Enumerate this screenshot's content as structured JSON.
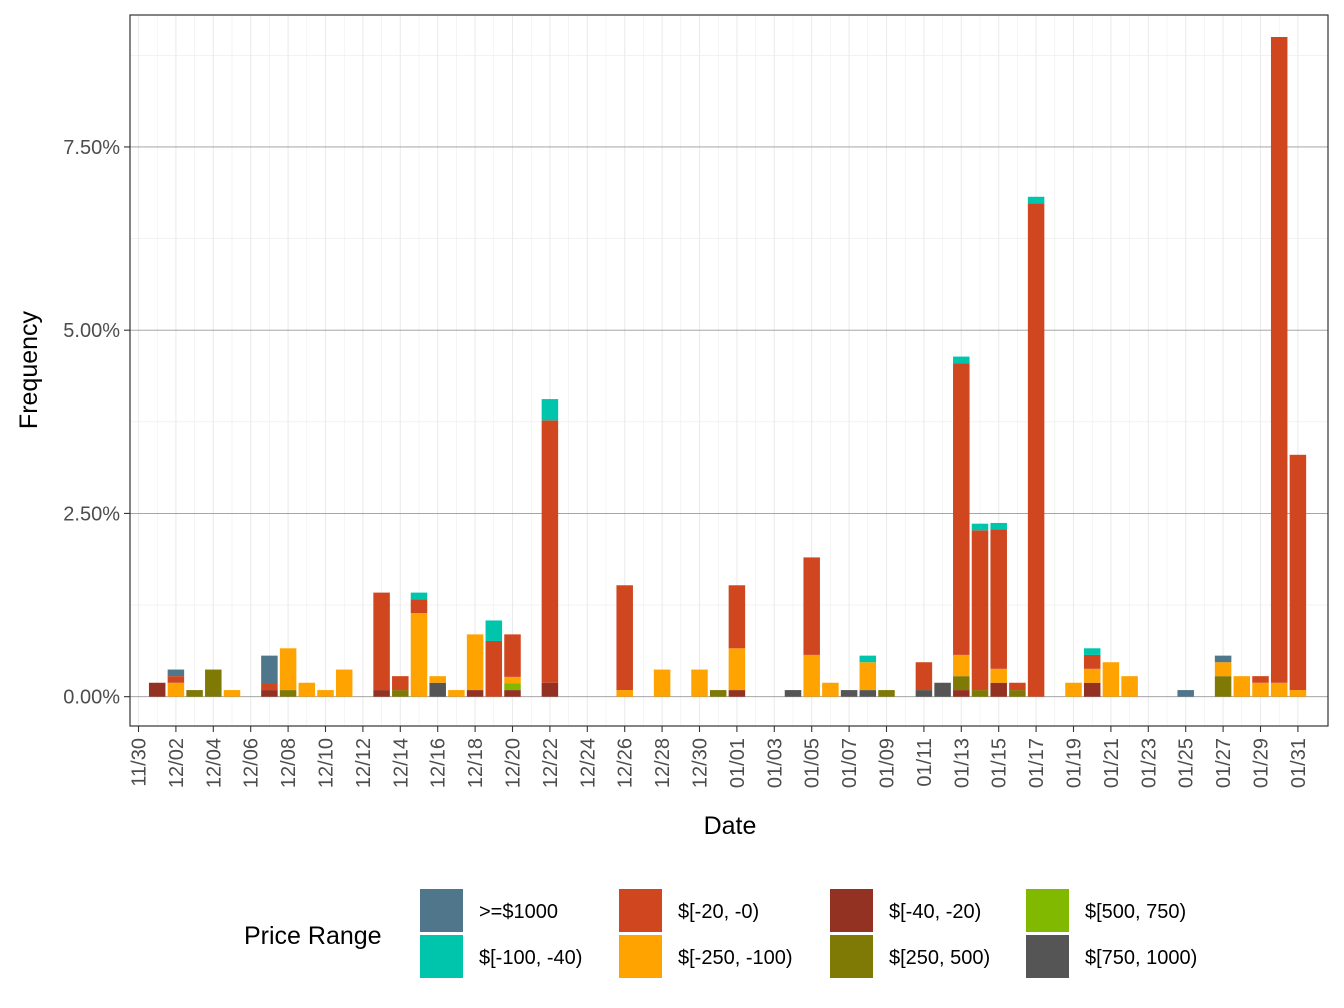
{
  "chart_data": {
    "type": "bar",
    "stacked": true,
    "xlabel": "Date",
    "ylabel": "Frequency",
    "ylim": [
      -0.4,
      9.3
    ],
    "y_ticks": [
      {
        "value": 0,
        "label": "0.00%"
      },
      {
        "value": 2.5,
        "label": "2.50%"
      },
      {
        "value": 5,
        "label": "5.00%"
      },
      {
        "value": 7.5,
        "label": "7.50%"
      }
    ],
    "x_tick_labels": [
      "11/30",
      "12/02",
      "12/04",
      "12/06",
      "12/08",
      "12/10",
      "12/12",
      "12/14",
      "12/16",
      "12/18",
      "12/20",
      "12/22",
      "12/24",
      "12/26",
      "12/28",
      "12/30",
      "01/01",
      "01/03",
      "01/05",
      "01/07",
      "01/09",
      "01/11",
      "01/13",
      "01/15",
      "01/17",
      "01/19",
      "01/21",
      "01/23",
      "01/25",
      "01/27",
      "01/29",
      "01/31"
    ],
    "legend_title": "Price Range",
    "series": [
      {
        "key": "neg40_20",
        "name": "$[-40, -20)",
        "color": "#933122"
      },
      {
        "key": "r250_500",
        "name": "$[250, 500)",
        "color": "#7f7a05"
      },
      {
        "key": "r500_750",
        "name": "$[500, 750)",
        "color": "#80b900"
      },
      {
        "key": "r750_1000",
        "name": "$[750, 1000)",
        "color": "#555555"
      },
      {
        "key": "neg250_100",
        "name": "$[-250, -100)",
        "color": "#ffa300"
      },
      {
        "key": "neg20_0",
        "name": "$[-20, -0)",
        "color": "#cf461f"
      },
      {
        "key": "neg100_40",
        "name": "$[-100, -40)",
        "color": "#00c5ad"
      },
      {
        "key": "ge1000",
        "name": ">=$1000",
        "color": "#50768b"
      }
    ],
    "legend_order": [
      "ge1000",
      "neg100_40",
      "neg20_0",
      "neg250_100",
      "neg40_20",
      "r250_500",
      "r500_750",
      "r750_1000"
    ],
    "bars": [
      {
        "date": "12/01",
        "segments": {
          "neg40_20": 0.19
        }
      },
      {
        "date": "12/02",
        "segments": {
          "neg250_100": 0.19,
          "neg20_0": 0.09,
          "ge1000": 0.09
        }
      },
      {
        "date": "12/03",
        "segments": {
          "r250_500": 0.09
        }
      },
      {
        "date": "12/04",
        "segments": {
          "r250_500": 0.37
        }
      },
      {
        "date": "12/05",
        "segments": {
          "neg250_100": 0.09
        }
      },
      {
        "date": "12/07",
        "segments": {
          "neg40_20": 0.09,
          "neg20_0": 0.09,
          "ge1000": 0.38
        }
      },
      {
        "date": "12/08",
        "segments": {
          "r250_500": 0.09,
          "neg250_100": 0.57
        }
      },
      {
        "date": "12/09",
        "segments": {
          "neg250_100": 0.19
        }
      },
      {
        "date": "12/10",
        "segments": {
          "neg250_100": 0.09
        }
      },
      {
        "date": "12/11",
        "segments": {
          "neg250_100": 0.37
        }
      },
      {
        "date": "12/13",
        "segments": {
          "neg40_20": 0.09,
          "neg20_0": 1.33
        }
      },
      {
        "date": "12/14",
        "segments": {
          "r250_500": 0.09,
          "neg20_0": 0.19
        }
      },
      {
        "date": "12/15",
        "segments": {
          "neg250_100": 1.14,
          "neg20_0": 0.19,
          "neg100_40": 0.09
        }
      },
      {
        "date": "12/16",
        "segments": {
          "r750_1000": 0.19,
          "neg250_100": 0.09
        }
      },
      {
        "date": "12/17",
        "segments": {
          "neg250_100": 0.09
        }
      },
      {
        "date": "12/18",
        "segments": {
          "neg40_20": 0.09,
          "neg250_100": 0.76
        }
      },
      {
        "date": "12/19",
        "segments": {
          "neg20_0": 0.76,
          "neg100_40": 0.28
        }
      },
      {
        "date": "12/20",
        "segments": {
          "r500_750": 0.09,
          "neg40_20": 0.09,
          "neg250_100": 0.09,
          "neg20_0": 0.58
        }
      },
      {
        "date": "12/22",
        "segments": {
          "neg40_20": 0.19,
          "neg20_0": 3.58,
          "neg100_40": 0.29
        }
      },
      {
        "date": "12/26",
        "segments": {
          "neg250_100": 0.09,
          "neg20_0": 1.43
        }
      },
      {
        "date": "12/28",
        "segments": {
          "neg250_100": 0.37
        }
      },
      {
        "date": "12/30",
        "segments": {
          "neg250_100": 0.37
        }
      },
      {
        "date": "12/31",
        "segments": {
          "r250_500": 0.09
        }
      },
      {
        "date": "01/01",
        "segments": {
          "neg40_20": 0.09,
          "neg250_100": 0.57,
          "neg20_0": 0.86
        }
      },
      {
        "date": "01/04",
        "segments": {
          "r750_1000": 0.09
        }
      },
      {
        "date": "01/05",
        "segments": {
          "neg250_100": 0.57,
          "neg20_0": 1.33
        }
      },
      {
        "date": "01/06",
        "segments": {
          "neg250_100": 0.19
        }
      },
      {
        "date": "01/07",
        "segments": {
          "r750_1000": 0.09
        }
      },
      {
        "date": "01/08",
        "segments": {
          "r750_1000": 0.09,
          "neg250_100": 0.38,
          "neg100_40": 0.09
        }
      },
      {
        "date": "01/09",
        "segments": {
          "r250_500": 0.09
        }
      },
      {
        "date": "01/11",
        "segments": {
          "r750_1000": 0.09,
          "neg20_0": 0.38
        }
      },
      {
        "date": "01/12",
        "segments": {
          "r750_1000": 0.19
        }
      },
      {
        "date": "01/13",
        "segments": {
          "r250_500": 0.19,
          "neg40_20": 0.09,
          "neg250_100": 0.29,
          "neg20_0": 3.98,
          "neg100_40": 0.09
        }
      },
      {
        "date": "01/14",
        "segments": {
          "r250_500": 0.09,
          "neg20_0": 2.18,
          "neg100_40": 0.09
        }
      },
      {
        "date": "01/15",
        "segments": {
          "neg40_20": 0.19,
          "neg250_100": 0.19,
          "neg20_0": 1.9,
          "neg100_40": 0.09
        }
      },
      {
        "date": "01/16",
        "segments": {
          "r250_500": 0.09,
          "neg20_0": 0.1
        }
      },
      {
        "date": "01/17",
        "segments": {
          "neg20_0": 6.73,
          "neg100_40": 0.09
        }
      },
      {
        "date": "01/19",
        "segments": {
          "neg250_100": 0.19
        }
      },
      {
        "date": "01/20",
        "segments": {
          "neg40_20": 0.19,
          "neg250_100": 0.19,
          "neg20_0": 0.19,
          "neg100_40": 0.09
        }
      },
      {
        "date": "01/21",
        "segments": {
          "neg250_100": 0.47
        }
      },
      {
        "date": "01/22",
        "segments": {
          "neg250_100": 0.28
        }
      },
      {
        "date": "01/25",
        "segments": {
          "ge1000": 0.09
        }
      },
      {
        "date": "01/27",
        "segments": {
          "r250_500": 0.28,
          "neg250_100": 0.19,
          "ge1000": 0.09
        }
      },
      {
        "date": "01/28",
        "segments": {
          "neg250_100": 0.28
        }
      },
      {
        "date": "01/29",
        "segments": {
          "neg250_100": 0.19,
          "neg20_0": 0.09
        }
      },
      {
        "date": "01/30",
        "segments": {
          "neg250_100": 0.19,
          "neg20_0": 8.81
        }
      },
      {
        "date": "01/31",
        "segments": {
          "neg250_100": 0.09,
          "neg20_0": 3.21
        }
      }
    ]
  }
}
